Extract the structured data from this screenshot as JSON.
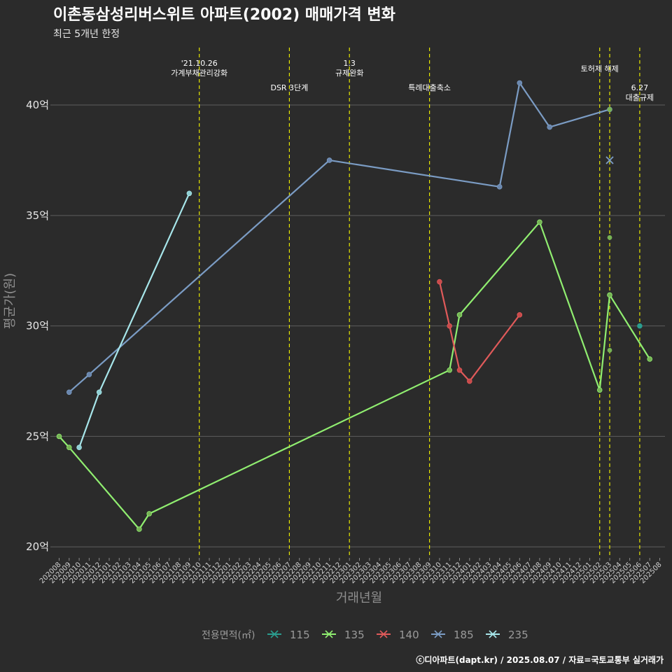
{
  "chart_data": {
    "type": "line",
    "title": "이촌동삼성리버스위트 아파트(2002) 매매가격 변화",
    "subtitle": "최근 5개년 한정",
    "xlabel": "거래년월",
    "ylabel": "평균가(원)",
    "ylim": [
      19.5,
      42.6
    ],
    "y_ticks": [
      {
        "value": 20,
        "label": "20억"
      },
      {
        "value": 25,
        "label": "25억"
      },
      {
        "value": 30,
        "label": "30억"
      },
      {
        "value": 35,
        "label": "35억"
      },
      {
        "value": 40,
        "label": "40억"
      }
    ],
    "categories": [
      "202008",
      "202009",
      "202010",
      "202011",
      "202012",
      "202101",
      "202102",
      "202103",
      "202104",
      "202105",
      "202106",
      "202107",
      "202108",
      "202109",
      "202110",
      "202111",
      "202112",
      "202201",
      "202202",
      "202203",
      "202204",
      "202205",
      "202206",
      "202207",
      "202208",
      "202209",
      "202210",
      "202211",
      "202212",
      "202301",
      "202302",
      "202303",
      "202304",
      "202305",
      "202306",
      "202307",
      "202308",
      "202309",
      "202310",
      "202311",
      "202312",
      "202401",
      "202402",
      "202403",
      "202404",
      "202405",
      "202406",
      "202407",
      "202408",
      "202409",
      "202410",
      "202411",
      "202412",
      "202501",
      "202502",
      "202503",
      "202504",
      "202505",
      "202506",
      "202507",
      "202508"
    ],
    "series": [
      {
        "name": "115",
        "color": "#2a9d8f",
        "marker_color": "#2a9d8f",
        "points": [
          [
            "202506",
            30.0
          ]
        ]
      },
      {
        "name": "135",
        "color": "#90ee70",
        "marker_color": "#77b255",
        "points": [
          [
            "202008",
            25.0
          ],
          [
            "202009",
            24.5
          ],
          [
            "202104",
            20.8
          ],
          [
            "202105",
            21.5
          ],
          [
            "202311",
            28.0
          ],
          [
            "202312",
            30.5
          ],
          [
            "202408",
            34.7
          ],
          [
            "202502",
            27.1
          ],
          [
            "202503",
            31.4
          ],
          [
            "202507",
            28.5
          ]
        ]
      },
      {
        "name": "140",
        "color": "#e05a5a",
        "marker_color": "#c94a4a",
        "points": [
          [
            "202310",
            32.0
          ],
          [
            "202311",
            30.0
          ],
          [
            "202312",
            28.0
          ],
          [
            "202401",
            27.5
          ],
          [
            "202406",
            30.5
          ]
        ]
      },
      {
        "name": "185",
        "color": "#7b9cc4",
        "marker_color": "#6a86ad",
        "points": [
          [
            "202009",
            27.0
          ],
          [
            "202011",
            27.8
          ],
          [
            "202211",
            37.5
          ],
          [
            "202404",
            36.3
          ],
          [
            "202406",
            41.0
          ],
          [
            "202409",
            39.0
          ],
          [
            "202503",
            39.8
          ]
        ]
      },
      {
        "name": "235",
        "color": "#a7e6ea",
        "marker_color": "#8fcfd3",
        "points": [
          [
            "202010",
            24.5
          ],
          [
            "202012",
            27.0
          ],
          [
            "202109",
            36.0
          ]
        ]
      }
    ],
    "extra_points": [
      {
        "series": "135",
        "x": "202503",
        "y": 28.9,
        "shape": "dot"
      },
      {
        "series": "135",
        "x": "202503",
        "y": 34.0,
        "shape": "dot"
      },
      {
        "series": "135",
        "x": "202503",
        "y": 39.8,
        "shape": "dot"
      },
      {
        "series": "185",
        "x": "202503",
        "y": 37.5,
        "shape": "cross"
      }
    ],
    "events": [
      {
        "x": "202110",
        "lines": [
          "'21.10.26",
          "가계부채관리강화"
        ],
        "row": 0
      },
      {
        "x": "202207",
        "lines": [
          "DSR 3단계"
        ],
        "row": 2
      },
      {
        "x": "202301",
        "lines": [
          "1.3",
          "규제완화"
        ],
        "row": 0
      },
      {
        "x": "202309",
        "lines": [
          "특례대출축소"
        ],
        "row": 2
      },
      {
        "x": "202502",
        "lines": [
          "토허제 해제"
        ],
        "row": 1
      },
      {
        "x": "202503",
        "lines": [],
        "row": 1
      },
      {
        "x": "202506",
        "lines": [
          "6.27",
          "대출규제"
        ],
        "row": 2
      }
    ],
    "event_color": "#e6e600",
    "gridlines": true,
    "legend": {
      "title": "전용면적(㎡)",
      "position": "bottom"
    },
    "caption": "ⓒ디아파트(dapt.kr) / 2025.08.07 / 자료=국토교통부 실거래가"
  }
}
